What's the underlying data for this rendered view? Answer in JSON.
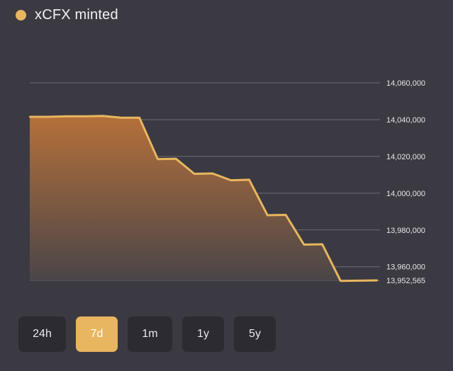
{
  "legend": {
    "label": "xCFX minted",
    "color": "#e8b660"
  },
  "ranges": [
    {
      "label": "24h",
      "active": false
    },
    {
      "label": "7d",
      "active": true
    },
    {
      "label": "1m",
      "active": false
    },
    {
      "label": "1y",
      "active": false
    },
    {
      "label": "5y",
      "active": false
    }
  ],
  "chart_data": {
    "type": "area",
    "series": [
      {
        "color": "#e8b660",
        "values": [
          14041500,
          14041500,
          14041800,
          14041800,
          14042000,
          14041000,
          14041000,
          14018500,
          14018700,
          14010500,
          14010700,
          14007000,
          14007300,
          13988000,
          13988200,
          13972000,
          13972200,
          13952300,
          13952400,
          13952565
        ]
      }
    ],
    "yticks": [
      13960000,
      13980000,
      14000000,
      14020000,
      14040000,
      14060000
    ],
    "ytick_labels": [
      "13,960,000",
      "13,980,000",
      "14,000,000",
      "14,020,000",
      "14,040,000",
      "14,060,000"
    ],
    "current_value": 13952565,
    "current_label": "13,952,565",
    "ylim": [
      13952565,
      14060000
    ],
    "grid": true,
    "colors": {
      "line": "#e8b660",
      "fill_top": "#b5703a",
      "fill_bottom": "#4a4548",
      "grid": "#6c6b72"
    }
  }
}
